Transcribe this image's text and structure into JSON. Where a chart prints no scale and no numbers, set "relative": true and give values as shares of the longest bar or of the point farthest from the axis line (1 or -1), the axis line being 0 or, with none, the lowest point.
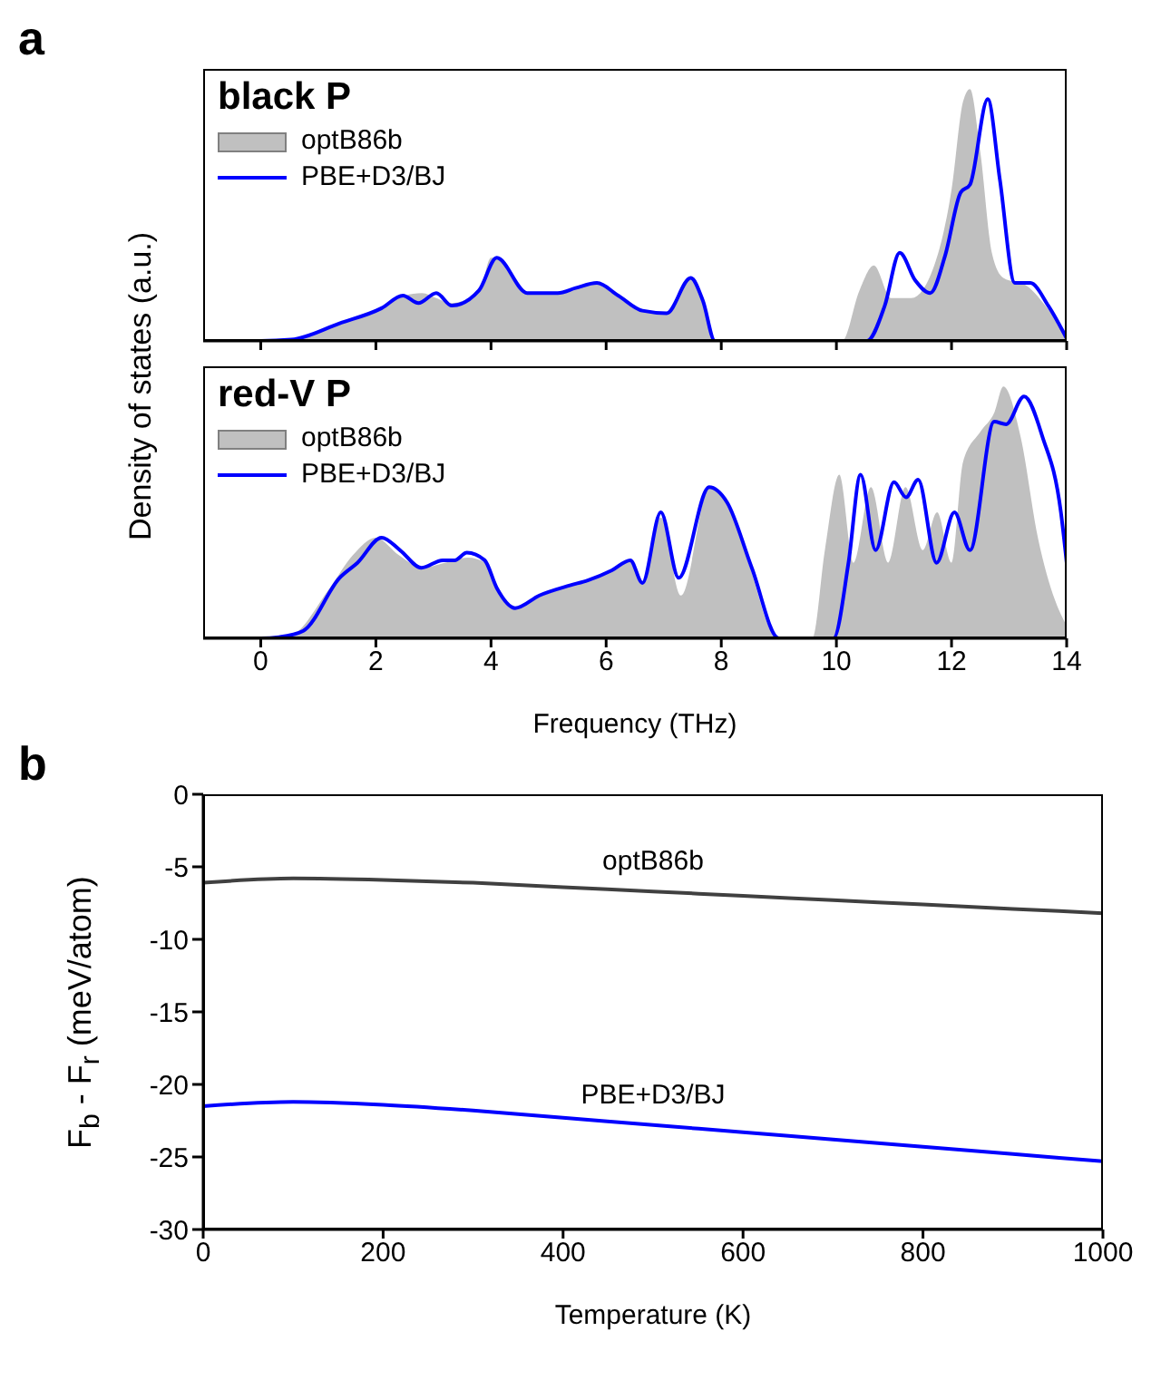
{
  "chart_data": [
    {
      "type": "area",
      "title": "black P",
      "ylabel": "Density of states (a.u.)",
      "relative": true,
      "xlim": [
        -1,
        14
      ],
      "xticks": [
        0,
        2,
        4,
        6,
        8,
        10,
        12,
        14
      ],
      "tick_labels": false,
      "legend": "top left",
      "annotations": [
        "a"
      ],
      "series": [
        {
          "name": "optB86b",
          "color": "#c0c0c0",
          "x": [
            -1,
            0,
            0.5,
            1.37,
            2.1,
            2.5,
            2.8,
            3.05,
            3.3,
            3.8,
            4.0,
            4.1,
            4.63,
            5.16,
            5.5,
            5.84,
            6.2,
            6.63,
            7.05,
            7.45,
            7.68,
            7.89,
            10.1,
            10.4,
            10.65,
            10.95,
            11.3,
            11.7,
            12.0,
            12.2,
            12.32,
            12.5,
            12.7,
            12.9,
            13.3,
            13.7,
            14.0
          ],
          "values": [
            0,
            0,
            0.005,
            0.07,
            0.13,
            0.18,
            0.19,
            0.17,
            0.15,
            0.2,
            0.33,
            0.33,
            0.19,
            0.19,
            0.21,
            0.23,
            0.18,
            0.12,
            0.11,
            0.25,
            0.16,
            0,
            0,
            0.2,
            0.3,
            0.17,
            0.17,
            0.3,
            0.6,
            0.95,
            1,
            0.75,
            0.35,
            0.25,
            0.22,
            0.12,
            0.03
          ]
        },
        {
          "name": "PBE+D3/BJ",
          "type": "line",
          "color": "#0000ff",
          "x": [
            -1,
            0,
            0.53,
            1.37,
            2.1,
            2.47,
            2.74,
            3.05,
            3.32,
            3.79,
            4.1,
            4.63,
            5.16,
            5.47,
            5.84,
            6.21,
            6.63,
            7.05,
            7.47,
            7.68,
            7.89,
            10.53,
            10.84,
            11.1,
            11.37,
            11.63,
            11.89,
            12.16,
            12.32,
            12.63,
            12.84,
            13.1,
            13.37,
            13.68,
            14.0
          ],
          "values": [
            0,
            0,
            0.005,
            0.07,
            0.13,
            0.18,
            0.15,
            0.19,
            0.14,
            0.2,
            0.33,
            0.19,
            0.19,
            0.21,
            0.23,
            0.18,
            0.12,
            0.11,
            0.25,
            0.16,
            0,
            0,
            0.14,
            0.35,
            0.24,
            0.19,
            0.34,
            0.59,
            0.62,
            0.96,
            0.64,
            0.23,
            0.23,
            0.14,
            0.01
          ]
        }
      ]
    },
    {
      "type": "area",
      "title": "red-V P",
      "xlabel": "Frequency (THz)",
      "relative": true,
      "xlim": [
        -1,
        14
      ],
      "xticks": [
        0,
        2,
        4,
        6,
        8,
        10,
        12,
        14
      ],
      "tick_labels": "x",
      "legend": "top left",
      "series": [
        {
          "name": "optB86b",
          "color": "#c0c0c0",
          "x": [
            -1,
            0,
            0.5,
            1.2,
            1.6,
            2.0,
            2.4,
            2.8,
            3.2,
            3.6,
            3.9,
            4.1,
            4.4,
            4.9,
            5.4,
            6.1,
            6.4,
            6.63,
            6.95,
            7.3,
            7.8,
            8.1,
            8.5,
            8.9,
            9.1,
            9.58,
            9.8,
            10.05,
            10.3,
            10.6,
            10.9,
            11.2,
            11.5,
            11.75,
            12.0,
            12.2,
            12.5,
            12.75,
            12.9,
            13.2,
            13.5,
            13.8,
            14.0
          ],
          "values": [
            0,
            0,
            0.01,
            0.2,
            0.33,
            0.4,
            0.33,
            0.28,
            0.3,
            0.32,
            0.3,
            0.2,
            0.12,
            0.17,
            0.21,
            0.27,
            0.31,
            0.22,
            0.48,
            0.17,
            0.6,
            0.54,
            0.28,
            0.02,
            0,
            0,
            0.35,
            0.65,
            0.3,
            0.6,
            0.3,
            0.6,
            0.35,
            0.5,
            0.3,
            0.7,
            0.82,
            0.9,
            1,
            0.8,
            0.4,
            0.15,
            0.05
          ]
        },
        {
          "name": "PBE+D3/BJ",
          "type": "line",
          "color": "#0000ff",
          "x": [
            -1,
            0,
            0.32,
            0.74,
            1.37,
            1.68,
            2.1,
            2.42,
            2.79,
            3.16,
            3.37,
            3.58,
            3.89,
            4.1,
            4.42,
            4.84,
            5.37,
            5.68,
            6.1,
            6.42,
            6.63,
            6.95,
            7.26,
            7.79,
            8.1,
            8.53,
            9.0,
            9.95,
            10.21,
            10.42,
            10.68,
            11.0,
            11.21,
            11.42,
            11.74,
            12.05,
            12.32,
            12.74,
            12.95,
            13.26,
            13.58,
            13.9,
            14.0
          ],
          "values": [
            0,
            0,
            0.005,
            0.03,
            0.24,
            0.3,
            0.4,
            0.35,
            0.28,
            0.31,
            0.31,
            0.34,
            0.31,
            0.2,
            0.12,
            0.17,
            0.21,
            0.23,
            0.27,
            0.31,
            0.22,
            0.5,
            0.24,
            0.6,
            0.54,
            0.28,
            0,
            0,
            0.3,
            0.65,
            0.35,
            0.62,
            0.56,
            0.63,
            0.3,
            0.5,
            0.35,
            0.86,
            0.85,
            0.96,
            0.8,
            0.5,
            0.3
          ]
        }
      ]
    },
    {
      "type": "line",
      "xlabel": "Temperature (K)",
      "ylabel": "F$_{b}$ - F$_{r}$ (meV/atom)",
      "xlim": [
        0,
        1000
      ],
      "xticks": [
        0,
        200,
        400,
        600,
        800,
        1000
      ],
      "ylim": [
        -30,
        0
      ],
      "yticks": [
        -30,
        -25,
        -20,
        -15,
        -10,
        -5,
        0
      ],
      "annotations": [
        "b"
      ],
      "series": [
        {
          "name": "optB86b",
          "color": "#404040",
          "x": [
            0,
            100,
            200,
            300,
            400,
            500,
            600,
            700,
            800,
            900,
            1000
          ],
          "values": [
            -6.1,
            -5.8,
            -5.9,
            -6.1,
            -6.4,
            -6.7,
            -7.0,
            -7.3,
            -7.6,
            -7.9,
            -8.2
          ]
        },
        {
          "name": "PBE+D3/BJ",
          "color": "#0000ff",
          "x": [
            0,
            100,
            200,
            300,
            400,
            500,
            600,
            700,
            800,
            900,
            1000
          ],
          "values": [
            -21.5,
            -21.2,
            -21.4,
            -21.8,
            -22.3,
            -22.8,
            -23.3,
            -23.8,
            -24.3,
            -24.8,
            -25.3
          ]
        }
      ]
    }
  ]
}
